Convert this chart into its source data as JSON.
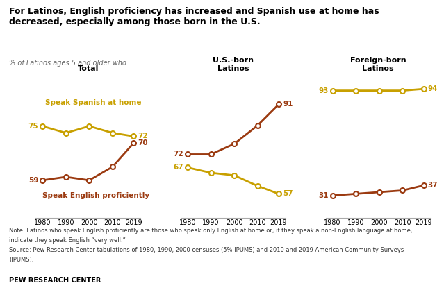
{
  "title": "For Latinos, English proficiency has increased and Spanish use at home has\ndecreased, especially among those born in the U.S.",
  "subtitle": "% of Latinos ages 5 and older who ...",
  "years": [
    1980,
    1990,
    2000,
    2010,
    2019
  ],
  "panels": [
    {
      "title": "Total",
      "spanish": [
        75,
        73,
        75,
        73,
        72
      ],
      "english": [
        59,
        60,
        59,
        63,
        70
      ]
    },
    {
      "title": "U.S.-born\nLatinos",
      "spanish": [
        67,
        65,
        64,
        60,
        57
      ],
      "english": [
        72,
        72,
        76,
        83,
        91
      ]
    },
    {
      "title": "Foreign-born\nLatinos",
      "spanish": [
        93,
        93,
        93,
        93,
        94
      ],
      "english": [
        31,
        32,
        33,
        34,
        37
      ]
    }
  ],
  "spanish_label": "Speak Spanish at home",
  "english_label": "Speak English proficiently",
  "spanish_color": "#c8a000",
  "english_color": "#9b3a10",
  "note1": "Note: Latinos who speak English proficiently are those who speak only English at home or, if they speak a non-English language at home,",
  "note2": "indicate they speak English “very well.”",
  "note3": "Source: Pew Research Center tabulations of 1980, 1990, 2000 censuses (5% IPUMS) and 2010 and 2019 American Community Surveys",
  "note4": "(IPUMS).",
  "branding": "PEW RESEARCH CENTER",
  "bg_color": "#ffffff",
  "marker_face": "#ffffff",
  "marker_size": 5,
  "line_width": 2.0
}
